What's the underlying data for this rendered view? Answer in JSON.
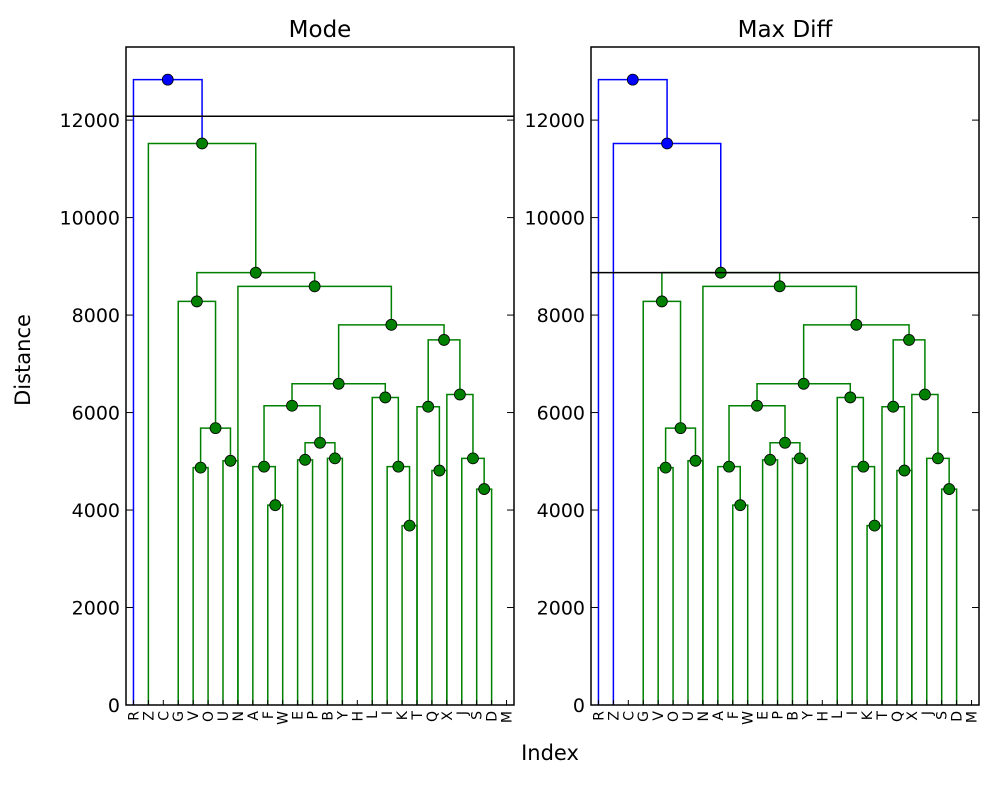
{
  "figure": {
    "xlabel": "Index",
    "ylabel": "Distance"
  },
  "colors": {
    "above_cut": "#0000ff",
    "below_cut": "#008000",
    "node_below": "#008000",
    "node_above": "#0000ff",
    "cut_line": "#000000"
  },
  "chart_data": [
    {
      "type": "dendrogram",
      "title": "Mode",
      "ylim": [
        0,
        13500
      ],
      "yticks": [
        0,
        2000,
        4000,
        6000,
        8000,
        10000,
        12000
      ],
      "cut_threshold": 12080,
      "leaves": [
        "R",
        "Z",
        "C",
        "G",
        "V",
        "O",
        "U",
        "N",
        "A",
        "F",
        "W",
        "E",
        "P",
        "B",
        "Y",
        "H",
        "L",
        "I",
        "K",
        "T",
        "Q",
        "X",
        "J",
        "S",
        "D",
        "M"
      ],
      "merges": [
        {
          "left": "K",
          "right": "T",
          "distance": 3680
        },
        {
          "left": "S",
          "right": "D",
          "distance": 4430
        },
        {
          "left": "A",
          "right": "F",
          "distance": 4100
        },
        {
          "left": "G",
          "right": "V",
          "distance": 4870
        },
        {
          "left": "O",
          "right": "U",
          "distance": 5010
        },
        {
          "left": "L",
          "right": "I+K+T",
          "distance": 4890
        },
        {
          "left": "Q",
          "right": "X",
          "distance": 4810
        },
        {
          "left": "N",
          "right": "A+F",
          "distance": 4890
        },
        {
          "left": "W",
          "right": "E",
          "distance": 5030
        },
        {
          "left": "P",
          "right": "B",
          "distance": 5060
        },
        {
          "left": "J",
          "right": "S+D+M",
          "distance": 5060
        },
        {
          "left": "W+E",
          "right": "P+B",
          "distance": 5380
        },
        {
          "left": "G+V",
          "right": "O+U",
          "distance": 5680
        },
        {
          "left": "T",
          "right": "Q+X",
          "distance": 6120
        },
        {
          "left": "N+A+F",
          "right": "W+E+P+B",
          "distance": 6140
        },
        {
          "left": "H",
          "right": "L+I+K",
          "distance": 6310
        },
        {
          "left": "J+S",
          "right": "D+M",
          "distance": 6370
        },
        {
          "left": "N..B",
          "right": "Y..K",
          "distance": 6590
        },
        {
          "left": "T+Q+X",
          "right": "J+S+D+M",
          "distance": 7490
        },
        {
          "left": "N..K",
          "right": "T..M",
          "distance": 7800
        },
        {
          "left": "C",
          "right": "G+V+O+U",
          "distance": 8280
        },
        {
          "left": "U",
          "right": "N..M",
          "distance": 8590
        },
        {
          "left": "C..U",
          "right": "N..M",
          "distance": 8870
        },
        {
          "left": "Z",
          "right": "C..M",
          "distance": 11520
        },
        {
          "left": "R",
          "right": "Z..M",
          "distance": 12830
        }
      ]
    },
    {
      "type": "dendrogram",
      "title": "Max Diff",
      "ylim": [
        0,
        13500
      ],
      "yticks": [
        0,
        2000,
        4000,
        6000,
        8000,
        10000,
        12000
      ],
      "cut_threshold": 8870,
      "leaves": [
        "R",
        "Z",
        "C",
        "G",
        "V",
        "O",
        "U",
        "N",
        "A",
        "F",
        "W",
        "E",
        "P",
        "B",
        "Y",
        "H",
        "L",
        "I",
        "K",
        "T",
        "Q",
        "X",
        "J",
        "S",
        "D",
        "M"
      ],
      "merges": [
        {
          "left": "K",
          "right": "T",
          "distance": 3680
        },
        {
          "left": "S",
          "right": "D",
          "distance": 4430
        },
        {
          "left": "A",
          "right": "F",
          "distance": 4100
        },
        {
          "left": "G",
          "right": "V",
          "distance": 4870
        },
        {
          "left": "O",
          "right": "U",
          "distance": 5010
        },
        {
          "left": "L",
          "right": "I+K+T",
          "distance": 4890
        },
        {
          "left": "Q",
          "right": "X",
          "distance": 4810
        },
        {
          "left": "N",
          "right": "A+F",
          "distance": 4890
        },
        {
          "left": "W",
          "right": "E",
          "distance": 5030
        },
        {
          "left": "P",
          "right": "B",
          "distance": 5060
        },
        {
          "left": "J",
          "right": "S+D+M",
          "distance": 5060
        },
        {
          "left": "W+E",
          "right": "P+B",
          "distance": 5380
        },
        {
          "left": "G+V",
          "right": "O+U",
          "distance": 5680
        },
        {
          "left": "T",
          "right": "Q+X",
          "distance": 6120
        },
        {
          "left": "N+A+F",
          "right": "W+E+P+B",
          "distance": 6140
        },
        {
          "left": "H",
          "right": "L+I+K",
          "distance": 6310
        },
        {
          "left": "J+S",
          "right": "D+M",
          "distance": 6370
        },
        {
          "left": "N..B",
          "right": "Y..K",
          "distance": 6590
        },
        {
          "left": "T+Q+X",
          "right": "J+S+D+M",
          "distance": 7490
        },
        {
          "left": "N..K",
          "right": "T..M",
          "distance": 7800
        },
        {
          "left": "C",
          "right": "G+V+O+U",
          "distance": 8280
        },
        {
          "left": "U",
          "right": "N..M",
          "distance": 8590
        },
        {
          "left": "C..U",
          "right": "N..M",
          "distance": 8870
        },
        {
          "left": "Z",
          "right": "C..M",
          "distance": 11520
        },
        {
          "left": "R",
          "right": "Z..M",
          "distance": 12830
        }
      ]
    }
  ]
}
